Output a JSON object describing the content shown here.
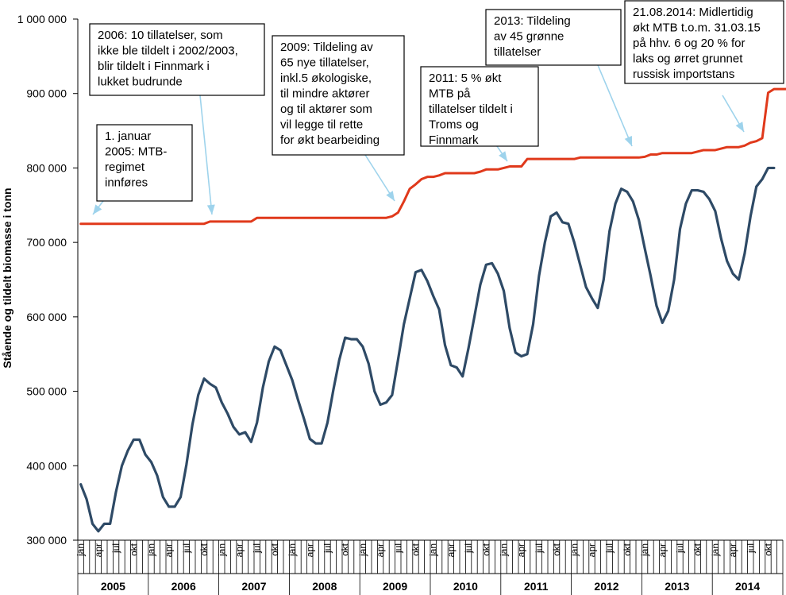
{
  "chart_data": {
    "type": "line",
    "ylabel": "Stående og tildelt biomasse i tonn",
    "ylim": [
      300000,
      1000000
    ],
    "yticks": [
      "300 000",
      "400 000",
      "500 000",
      "600 000",
      "700 000",
      "800 000",
      "900 000",
      "1 000 000"
    ],
    "month_labels": [
      "jan",
      "apr",
      "jul",
      "okt"
    ],
    "years": [
      "2005",
      "2006",
      "2007",
      "2008",
      "2009",
      "2010",
      "2011",
      "2012",
      "2013",
      "2014"
    ],
    "colors": {
      "stock": "#2e4a66",
      "mtb": "#e0391b",
      "arrow": "#9ed3ec"
    },
    "series": [
      {
        "name": "",
        "color": "#2e4a66",
        "values": [
          375000,
          355000,
          322000,
          312000,
          322000,
          322000,
          365000,
          400000,
          420000,
          435000,
          435000,
          415000,
          405000,
          387000,
          358000,
          345000,
          345000,
          358000,
          402000,
          455000,
          495000,
          517000,
          510000,
          505000,
          485000,
          470000,
          452000,
          442000,
          445000,
          432000,
          458000,
          505000,
          540000,
          560000,
          555000,
          535000,
          515000,
          488000,
          463000,
          436000,
          430000,
          430000,
          458000,
          502000,
          542000,
          572000,
          570000,
          570000,
          560000,
          537000,
          500000,
          482000,
          485000,
          495000,
          542000,
          590000,
          625000,
          660000,
          663000,
          648000,
          628000,
          610000,
          562000,
          535000,
          532000,
          520000,
          558000,
          600000,
          643000,
          670000,
          672000,
          658000,
          635000,
          585000,
          552000,
          547000,
          550000,
          590000,
          655000,
          700000,
          735000,
          740000,
          727000,
          725000,
          700000,
          670000,
          640000,
          625000,
          612000,
          650000,
          715000,
          752000,
          772000,
          768000,
          755000,
          730000,
          692000,
          655000,
          615000,
          592000,
          608000,
          650000,
          718000,
          752000,
          770000,
          770000,
          768000,
          758000,
          742000,
          705000,
          675000,
          658000,
          650000,
          685000,
          735000,
          775000,
          785000,
          800000,
          800000
        ]
      },
      {
        "name": "",
        "color": "#e0391b",
        "values": [
          725000,
          725000,
          725000,
          725000,
          725000,
          725000,
          725000,
          725000,
          725000,
          725000,
          725000,
          725000,
          725000,
          725000,
          725000,
          725000,
          725000,
          725000,
          725000,
          725000,
          725000,
          725000,
          728000,
          728000,
          728000,
          728000,
          728000,
          728000,
          728000,
          728000,
          733000,
          733000,
          733000,
          733000,
          733000,
          733000,
          733000,
          733000,
          733000,
          733000,
          733000,
          733000,
          733000,
          733000,
          733000,
          733000,
          733000,
          733000,
          733000,
          733000,
          733000,
          733000,
          733000,
          735000,
          740000,
          755000,
          772000,
          778000,
          785000,
          788000,
          788000,
          790000,
          793000,
          793000,
          793000,
          793000,
          793000,
          793000,
          795000,
          798000,
          798000,
          798000,
          800000,
          802000,
          802000,
          802000,
          812000,
          812000,
          812000,
          812000,
          812000,
          812000,
          812000,
          812000,
          812000,
          814000,
          814000,
          814000,
          814000,
          814000,
          814000,
          814000,
          814000,
          814000,
          814000,
          814000,
          815000,
          818000,
          818000,
          820000,
          820000,
          820000,
          820000,
          820000,
          820000,
          822000,
          824000,
          824000,
          824000,
          826000,
          828000,
          828000,
          828000,
          830000,
          834000,
          836000,
          840000,
          901000,
          906000,
          906000,
          906000,
          908000,
          909000
        ]
      }
    ],
    "annotations": [
      {
        "lines": [
          "1. januar",
          "2005: MTB-",
          "regimet",
          "innføres"
        ]
      },
      {
        "lines": [
          "2006: 10 tillatelser, som",
          "ikke ble tildelt i 2002/2003,",
          "blir tildelt i Finnmark i",
          "lukket budrunde"
        ]
      },
      {
        "lines": [
          "2009: Tildeling av",
          "65 nye tillatelser,",
          "inkl.5 økologiske,",
          "til mindre aktører",
          "og til aktører som",
          "vil legge til rette",
          "for økt bearbeiding"
        ]
      },
      {
        "lines": [
          "2011: 5 % økt",
          "MTB på",
          "tillatelser tildelt i",
          "Troms og",
          "Finnmark"
        ]
      },
      {
        "lines": [
          "2013: Tildeling",
          "av 45 grønne",
          "tillatelser"
        ]
      },
      {
        "lines": [
          "21.08.2014: Midlertidig",
          "økt MTB t.o.m. 31.03.15",
          "på hhv. 6 og 20 % for",
          "laks og ørret grunnet",
          "russisk importstans"
        ]
      }
    ]
  }
}
